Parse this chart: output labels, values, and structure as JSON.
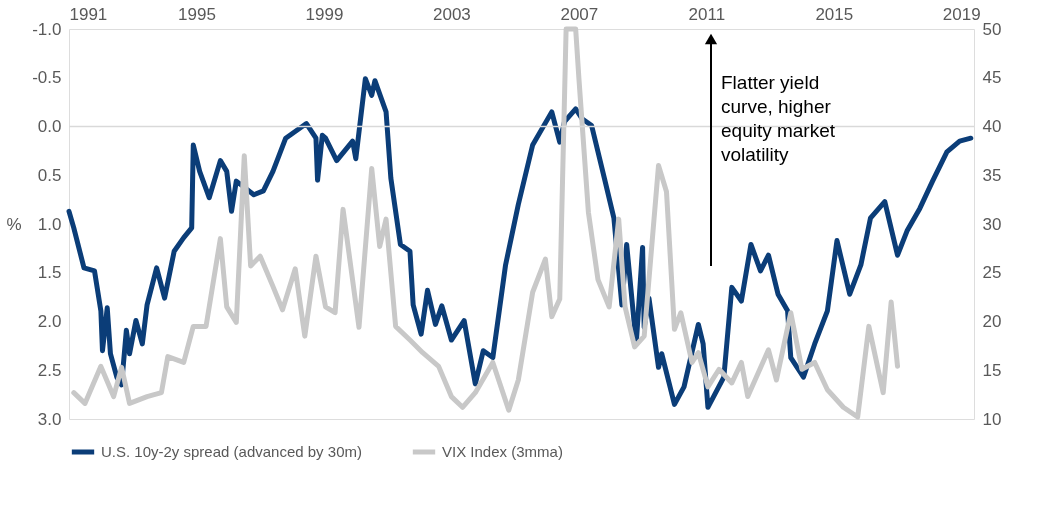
{
  "chart_data": {
    "type": "line",
    "ylabel": "%",
    "xlim": [
      1991,
      2019.4
    ],
    "xticks": [
      1991,
      1995,
      1999,
      2003,
      2007,
      2011,
      2015,
      2019
    ],
    "ylim": [
      3.0,
      -1.0
    ],
    "yticks": [
      {
        "value": -1.0,
        "label": "-1.0"
      },
      {
        "value": -0.5,
        "label": "-0.5"
      },
      {
        "value": 0,
        "label": "0.0"
      },
      {
        "value": 0.5,
        "label": "0.5"
      },
      {
        "value": 1.0,
        "label": "1.0"
      },
      {
        "value": 1.5,
        "label": "1.5"
      },
      {
        "value": 2.0,
        "label": "2.0"
      },
      {
        "value": 2.5,
        "label": "2.5"
      },
      {
        "value": 3.0,
        "label": "3.0"
      }
    ],
    "y2lim": [
      10,
      50
    ],
    "y2ticks": [
      10,
      15,
      20,
      25,
      30,
      35,
      40,
      45,
      50
    ],
    "grid": false,
    "legend": "bottom",
    "line_style": "solid",
    "marker": "none",
    "ref_lines": [
      {
        "axis": "y",
        "value": 0,
        "label": null,
        "color": "#d9d9d9"
      }
    ],
    "annotations": [
      "Flatter yield curve, higher equity market volatility"
    ],
    "series": [
      {
        "name": "U.S. 10y-2y spread (advanced by 30m)",
        "color": "#0b3d78",
        "x": [
          1991.0,
          1991.15,
          1991.47,
          1991.8,
          1992.0,
          1992.05,
          1992.2,
          1992.3,
          1992.5,
          1992.65,
          1992.8,
          1992.9,
          1993.1,
          1993.3,
          1993.45,
          1993.75,
          1994.0,
          1994.3,
          1994.6,
          1994.85,
          1994.9,
          1995.1,
          1995.4,
          1995.75,
          1995.95,
          1996.1,
          1996.25,
          1996.8,
          1997.1,
          1997.4,
          1997.8,
          1998.45,
          1998.75,
          1998.8,
          1998.95,
          1999.05,
          1999.4,
          1999.9,
          2000.0,
          2000.3,
          2000.5,
          2000.6,
          2000.95,
          2001.1,
          2001.4,
          2001.7,
          2001.8,
          2002.05,
          2002.25,
          2002.5,
          2002.7,
          2003.0,
          2003.4,
          2003.75,
          2004.0,
          2004.3,
          2004.7,
          2005.1,
          2005.55,
          2006.15,
          2006.4,
          2006.55,
          2006.9,
          2007.1,
          2007.4,
          2007.8,
          2008.1,
          2008.35,
          2008.5,
          2008.8,
          2009.0,
          2009.05,
          2009.2,
          2009.5,
          2009.6,
          2010.0,
          2010.3,
          2010.75,
          2010.9,
          2011.05,
          2011.55,
          2011.8,
          2012.1,
          2012.4,
          2012.7,
          2012.95,
          2013.25,
          2013.55,
          2013.65,
          2014.05,
          2014.4,
          2014.8,
          2015.1,
          2015.5,
          2015.85,
          2016.15,
          2016.6,
          2017.0,
          2017.3,
          2017.7,
          2018.1,
          2018.55,
          2018.95,
          2019.3
        ],
        "values": [
          0.87,
          1.04,
          1.45,
          1.48,
          1.89,
          2.3,
          1.86,
          2.33,
          2.57,
          2.65,
          2.09,
          2.33,
          1.99,
          2.23,
          1.83,
          1.45,
          1.76,
          1.28,
          1.14,
          1.04,
          0.19,
          0.46,
          0.73,
          0.35,
          0.46,
          0.87,
          0.56,
          0.7,
          0.66,
          0.46,
          0.12,
          -0.03,
          0.12,
          0.55,
          0.09,
          0.12,
          0.35,
          0.15,
          0.33,
          -0.49,
          -0.32,
          -0.47,
          -0.15,
          0.53,
          1.21,
          1.28,
          1.83,
          2.13,
          1.68,
          2.03,
          1.84,
          2.19,
          1.99,
          2.64,
          2.3,
          2.37,
          1.42,
          0.8,
          0.19,
          -0.15,
          0.16,
          -0.05,
          -0.18,
          -0.08,
          -0.01,
          0.53,
          0.94,
          1.83,
          1.21,
          2.23,
          1.24,
          2.06,
          1.76,
          2.47,
          2.33,
          2.85,
          2.67,
          2.03,
          2.23,
          2.88,
          2.57,
          1.65,
          1.79,
          1.21,
          1.48,
          1.32,
          1.72,
          1.89,
          2.37,
          2.57,
          2.23,
          1.89,
          1.17,
          1.72,
          1.42,
          0.94,
          0.77,
          1.32,
          1.07,
          0.84,
          0.56,
          0.26,
          0.15,
          0.12
        ]
      },
      {
        "name": "VIX Index (3mma)",
        "color": "#c8c8c8",
        "axis": "y2",
        "x": [
          1991.15,
          1991.5,
          1992.0,
          1992.4,
          1992.65,
          1992.9,
          1993.45,
          1993.9,
          1994.1,
          1994.6,
          1994.9,
          1995.3,
          1995.75,
          1995.95,
          1996.25,
          1996.5,
          1996.7,
          1997.0,
          1997.4,
          1997.7,
          1998.1,
          1998.4,
          1998.75,
          1999.05,
          1999.35,
          1999.6,
          2000.1,
          2000.5,
          2000.75,
          2000.95,
          2001.25,
          2001.7,
          2002.1,
          2002.6,
          2003.0,
          2003.35,
          2003.75,
          2004.3,
          2004.8,
          2005.1,
          2005.55,
          2005.95,
          2006.15,
          2006.4,
          2006.6,
          2006.9,
          2007.0,
          2007.3,
          2007.6,
          2007.95,
          2008.25,
          2008.45,
          2008.75,
          2009.05,
          2009.5,
          2009.75,
          2009.85,
          2010.0,
          2010.2,
          2010.55,
          2010.75,
          2011.05,
          2011.4,
          2011.8,
          2012.1,
          2012.3,
          2012.95,
          2013.2,
          2013.65,
          2014.0,
          2014.4,
          2014.8,
          2015.3,
          2015.75,
          2016.1,
          2016.55,
          2016.8,
          2017.0
        ],
        "values": [
          12.7,
          11.6,
          15.4,
          12.3,
          15.3,
          11.6,
          12.3,
          12.7,
          16.4,
          15.8,
          19.5,
          19.5,
          28.5,
          21.5,
          19.9,
          37.0,
          25.7,
          26.7,
          23.6,
          21.2,
          25.4,
          18.5,
          26.7,
          21.5,
          20.9,
          31.5,
          19.4,
          35.7,
          27.7,
          30.5,
          19.5,
          18.1,
          16.8,
          15.4,
          12.3,
          11.2,
          12.7,
          15.8,
          10.9,
          14.0,
          23.0,
          26.4,
          20.5,
          22.3,
          50,
          50,
          45,
          31.2,
          24.3,
          21.5,
          30.5,
          21.5,
          17.4,
          18.5,
          36.0,
          33.3,
          27.7,
          19.2,
          20.9,
          15.8,
          16.8,
          13.3,
          15.1,
          13.7,
          15.8,
          12.3,
          17.1,
          14.0,
          20.9,
          15.1,
          15.8,
          13.0,
          11.2,
          10.2,
          19.5,
          12.7,
          22.0,
          15.4
        ]
      }
    ]
  }
}
